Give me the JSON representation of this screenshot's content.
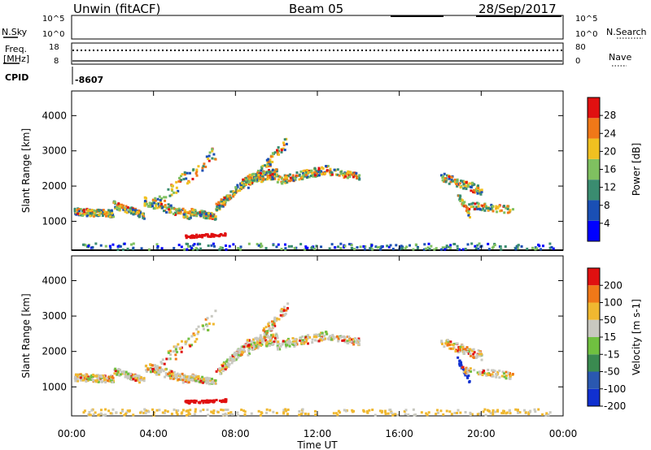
{
  "header": {
    "station": "Unwin (fitACF)",
    "beam": "Beam 05",
    "date": "28/Sep/2017"
  },
  "status_panel": {
    "nsky_label": "N.Sky",
    "nsearch_label": "N.Search",
    "freq_label": "Freq.",
    "freq_unit": "[MHz]",
    "nave_label": "Nave",
    "cpid_label": "CPID",
    "cpid_value": "-8607",
    "noise_ticks": [
      "10^5",
      "10^0"
    ],
    "freq_ticks": [
      "18",
      "8"
    ],
    "nave_ticks": [
      "80",
      "0"
    ]
  },
  "chart_data": [
    {
      "type": "heatmap",
      "name": "power",
      "ylabel": "Slant Range [km]",
      "xlabel": "",
      "colorbar_label": "Power [dB]",
      "colorbar_ticks": [
        4,
        8,
        12,
        16,
        20,
        24,
        28
      ],
      "colorbar_range": [
        0,
        32
      ],
      "colors": [
        "#0000ff",
        "#1a4fb4",
        "#3a8c70",
        "#7fc060",
        "#f0c020",
        "#f07818",
        "#e01010"
      ],
      "ylim": [
        180,
        4700
      ],
      "yticks": [
        1000,
        2000,
        3000,
        4000
      ],
      "xlim": [
        0,
        24
      ],
      "xticks": [
        "00:00",
        "04:00",
        "08:00",
        "12:00",
        "16:00",
        "20:00",
        "00:00"
      ]
    },
    {
      "type": "heatmap",
      "name": "velocity",
      "ylabel": "Slant Range [km]",
      "xlabel": "Time UT",
      "colorbar_label": "Velocity [m s-1]",
      "colorbar_ticks": [
        "200",
        "100",
        "50",
        "15",
        "-15",
        "-50",
        "-100",
        "-200"
      ],
      "colors": [
        "#1030d0",
        "#2a58b0",
        "#3a8a50",
        "#70c040",
        "#c8c8c0",
        "#f0b830",
        "#f07818",
        "#e01010"
      ],
      "ylim": [
        180,
        4700
      ],
      "yticks": [
        1000,
        2000,
        3000,
        4000
      ],
      "xlim": [
        0,
        24
      ],
      "xticks": [
        "00:00",
        "04:00",
        "08:00",
        "12:00",
        "16:00",
        "20:00",
        "00:00"
      ]
    }
  ]
}
